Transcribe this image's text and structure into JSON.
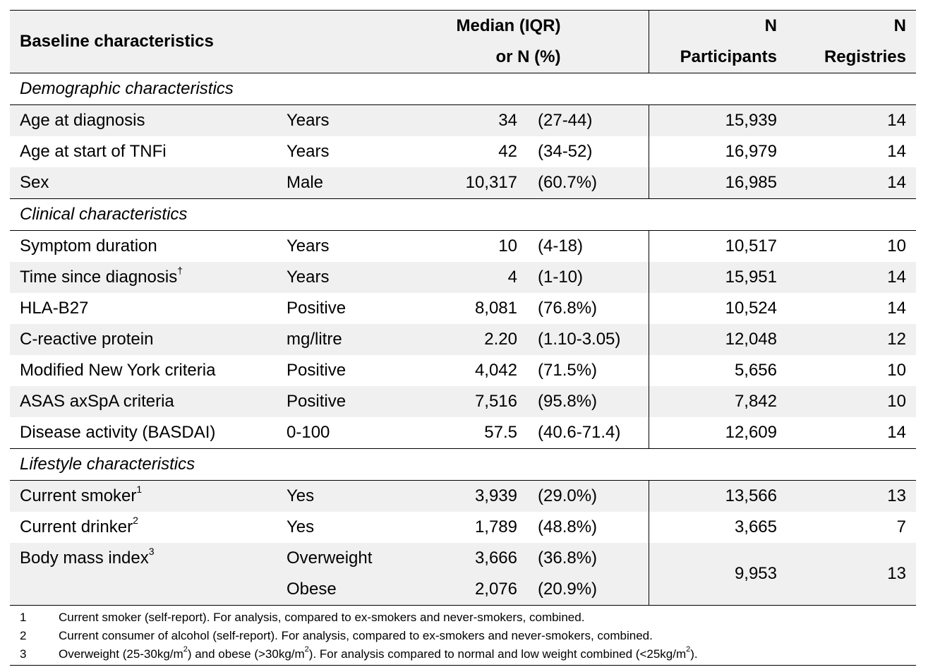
{
  "header": {
    "col1": "Baseline characteristics",
    "col3_line1": "Median (IQR)",
    "col3_line2": "or N (%)",
    "col5_line1": "N",
    "col5_line2": "Participants",
    "col6_line1": "N",
    "col6_line2": "Registries"
  },
  "sections": {
    "demographic": "Demographic characteristics",
    "clinical": "Clinical characteristics",
    "lifestyle": "Lifestyle characteristics"
  },
  "rows": {
    "age_diag": {
      "label": "Age at diagnosis",
      "unit": "Years",
      "value": "34",
      "range": "(27-44)",
      "participants": "15,939",
      "registries": "14"
    },
    "age_tnfi": {
      "label": "Age at start of TNFi",
      "unit": "Years",
      "value": "42",
      "range": "(34-52)",
      "participants": "16,979",
      "registries": "14"
    },
    "sex": {
      "label": "Sex",
      "unit": "Male",
      "value": "10,317",
      "range": "(60.7%)",
      "participants": "16,985",
      "registries": "14"
    },
    "symptom": {
      "label": "Symptom duration",
      "unit": "Years",
      "value": "10",
      "range": "(4-18)",
      "participants": "10,517",
      "registries": "10"
    },
    "time_diag": {
      "label": "Time since diagnosis",
      "sup": "†",
      "unit": "Years",
      "value": "4",
      "range": "(1-10)",
      "participants": "15,951",
      "registries": "14"
    },
    "hla": {
      "label": "HLA-B27",
      "unit": "Positive",
      "value": "8,081",
      "range": "(76.8%)",
      "participants": "10,524",
      "registries": "14"
    },
    "crp": {
      "label": "C-reactive protein",
      "unit": "mg/litre",
      "value": "2.20",
      "range": "(1.10-3.05)",
      "participants": "12,048",
      "registries": "12"
    },
    "mny": {
      "label": "Modified New York criteria",
      "unit": "Positive",
      "value": "4,042",
      "range": "(71.5%)",
      "participants": "5,656",
      "registries": "10"
    },
    "asas": {
      "label": "ASAS axSpA criteria",
      "unit": "Positive",
      "value": "7,516",
      "range": "(95.8%)",
      "participants": "7,842",
      "registries": "10"
    },
    "basdai": {
      "label": "Disease activity (BASDAI)",
      "unit": "0-100",
      "value": "57.5",
      "range": "(40.6-71.4)",
      "participants": "12,609",
      "registries": "14"
    },
    "smoker": {
      "label": "Current smoker",
      "sup": "1",
      "unit": "Yes",
      "value": "3,939",
      "range": "(29.0%)",
      "participants": "13,566",
      "registries": "13"
    },
    "drinker": {
      "label": "Current drinker",
      "sup": "2",
      "unit": "Yes",
      "value": "1,789",
      "range": "(48.8%)",
      "participants": "3,665",
      "registries": "7"
    },
    "bmi": {
      "label": "Body mass index",
      "sup": "3",
      "unit": "Overweight",
      "value": "3,666",
      "range": "(36.8%)",
      "participants": "9,953",
      "registries": "13"
    },
    "bmi_obese": {
      "unit": "Obese",
      "value": "2,076",
      "range": "(20.9%)"
    }
  },
  "footnotes": {
    "n1": "1",
    "t1": "Current smoker (self-report). For analysis, compared to ex-smokers and never-smokers, combined.",
    "n2": "2",
    "t2": "Current consumer of alcohol (self-report). For analysis, compared to ex-smokers and never-smokers, combined.",
    "n3": "3",
    "t3_a": "Overweight (25-30kg/m",
    "t3_b": ") and obese (>30kg/m",
    "t3_c": "). For analysis compared to normal and low weight combined (<25kg/m",
    "t3_d": ").",
    "t3_sup": "2"
  },
  "colors": {
    "header_bg": "#f0f0f0",
    "row_shade": "#f0f0f0",
    "rule": "#000000"
  }
}
